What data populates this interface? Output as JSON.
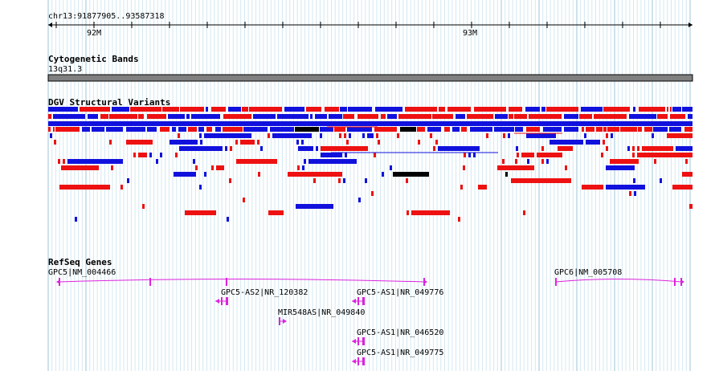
{
  "ruler": {
    "location": "chr13:91877905..93587318",
    "ticks": [
      {
        "label": "92M",
        "pos_mb": 92.0
      },
      {
        "label": "93M",
        "pos_mb": 93.0
      }
    ]
  },
  "tracks": {
    "cytoband": {
      "title": "Cytogenetic Bands",
      "band": "13q31.3"
    },
    "dgv": {
      "title": "DGV Structural Variants",
      "colors": {
        "gain": "#ee1111",
        "loss": "#1111dd",
        "complex": "#000000"
      }
    },
    "refseq": {
      "title": "RefSeq Genes",
      "genes": [
        {
          "label": "GPC5|NM_004466"
        },
        {
          "label": "GPC6|NM_005708"
        },
        {
          "label": "GPC5-AS2|NR_120382"
        },
        {
          "label": "GPC5-AS1|NR_049776"
        },
        {
          "label": "MIR548AS|NR_049840"
        },
        {
          "label": "GPC5-AS1|NR_046520"
        },
        {
          "label": "GPC5-AS1|NR_049775"
        }
      ],
      "color": "#dd22dd"
    }
  }
}
